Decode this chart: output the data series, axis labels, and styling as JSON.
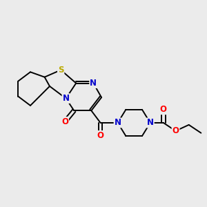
{
  "bg_color": "#ebebeb",
  "atom_colors": {
    "C": "#000000",
    "N": "#0000cc",
    "O": "#ff0000",
    "S": "#bbaa00"
  },
  "bond_color": "#000000",
  "figsize": [
    3.0,
    3.0
  ],
  "dpi": 100,
  "lw": 1.4,
  "fs": 8.5
}
